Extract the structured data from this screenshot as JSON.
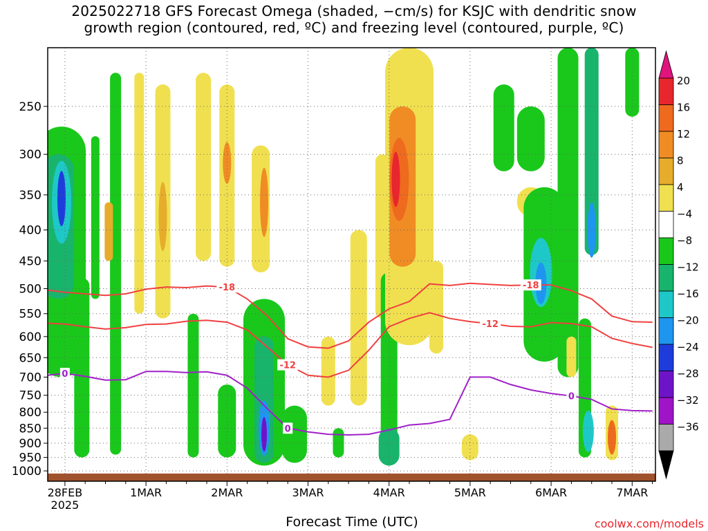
{
  "title": {
    "line1": "2025022718 GFS Forecast Omega (shaded, −cm/s) for KSJC with dendritic snow",
    "line2": "growth region (contoured, red, ºC) and freezing level (contoured, purple, ºC)"
  },
  "credit": "coolwx.com/models",
  "chart_data": {
    "type": "heatmap",
    "title": "2025022718 GFS Forecast Omega (shaded, −cm/s) for KSJC with dendritic snow growth region (contoured, red, ºC) and freezing level (contoured, purple, ºC)",
    "xlabel": "Forecast Time (UTC)",
    "ylabel": "",
    "x_ticks": [
      "28FEB\n2025",
      "1MAR",
      "2MAR",
      "3MAR",
      "4MAR",
      "5MAR",
      "6MAR",
      "7MAR"
    ],
    "x_range": [
      "2025-02-27 18Z",
      "2025-03-07 06Z"
    ],
    "y_ticks": [
      250,
      300,
      350,
      400,
      450,
      500,
      550,
      600,
      650,
      700,
      750,
      800,
      850,
      900,
      950,
      1000
    ],
    "y_range": [
      1000,
      200
    ],
    "y_scale": "log (pressure, hPa)",
    "grid": true,
    "colorbar": {
      "labels": [
        20,
        16,
        12,
        8,
        4,
        -4,
        -8,
        -12,
        -16,
        -20,
        -24,
        -28,
        -32,
        -36
      ],
      "colors": [
        "#e0147d",
        "#e8262d",
        "#ee6a1e",
        "#f08c24",
        "#e6ac2c",
        "#f0e050",
        "#ffffff",
        "#19c81b",
        "#19b46c",
        "#1ec8c8",
        "#1e96f0",
        "#1e3cdc",
        "#6e14c8",
        "#a014c8",
        "#aaaaaa",
        "#000000"
      ]
    },
    "contours": {
      "dendritic_minus12": {
        "color": "#f04040",
        "label": "-12",
        "points": [
          [
            "02-27 18Z",
            570
          ],
          [
            "02-28 00Z",
            572
          ],
          [
            "02-28 06Z",
            578
          ],
          [
            "02-28 12Z",
            583
          ],
          [
            "02-28 18Z",
            580
          ],
          [
            "03-01 00Z",
            573
          ],
          [
            "03-01 06Z",
            572
          ],
          [
            "03-01 12Z",
            566
          ],
          [
            "03-01 18Z",
            564
          ],
          [
            "03-02 00Z",
            568
          ],
          [
            "03-02 06Z",
            585
          ],
          [
            "03-02 12Z",
            625
          ],
          [
            "03-02 18Z",
            668
          ],
          [
            "03-03 00Z",
            695
          ],
          [
            "03-03 06Z",
            700
          ],
          [
            "03-03 12Z",
            682
          ],
          [
            "03-03 18Z",
            632
          ],
          [
            "03-04 00Z",
            578
          ],
          [
            "03-04 06Z",
            560
          ],
          [
            "03-04 12Z",
            548
          ],
          [
            "03-04 18Z",
            560
          ],
          [
            "03-05 00Z",
            567
          ],
          [
            "03-05 06Z",
            571
          ],
          [
            "03-05 12Z",
            577
          ],
          [
            "03-05 18Z",
            578
          ],
          [
            "03-06 00Z",
            569
          ],
          [
            "03-06 06Z",
            571
          ],
          [
            "03-06 12Z",
            578
          ],
          [
            "03-06 18Z",
            604
          ],
          [
            "03-07 00Z",
            616
          ],
          [
            "03-07 06Z",
            625
          ]
        ]
      },
      "dendritic_minus18": {
        "color": "#f04040",
        "label": "-18",
        "points": [
          [
            "02-27 18Z",
            502
          ],
          [
            "02-28 00Z",
            507
          ],
          [
            "02-28 06Z",
            510
          ],
          [
            "02-28 12Z",
            513
          ],
          [
            "02-28 18Z",
            510
          ],
          [
            "03-01 00Z",
            501
          ],
          [
            "03-01 06Z",
            497
          ],
          [
            "03-01 12Z",
            498
          ],
          [
            "03-01 18Z",
            495
          ],
          [
            "03-02 00Z",
            497
          ],
          [
            "03-02 06Z",
            520
          ],
          [
            "03-02 12Z",
            555
          ],
          [
            "03-02 18Z",
            605
          ],
          [
            "03-03 00Z",
            624
          ],
          [
            "03-03 06Z",
            627
          ],
          [
            "03-03 12Z",
            610
          ],
          [
            "03-03 18Z",
            568
          ],
          [
            "03-04 00Z",
            540
          ],
          [
            "03-04 06Z",
            525
          ],
          [
            "03-04 12Z",
            491
          ],
          [
            "03-04 18Z",
            494
          ],
          [
            "03-05 00Z",
            490
          ],
          [
            "03-05 06Z",
            492
          ],
          [
            "03-05 12Z",
            494
          ],
          [
            "03-05 18Z",
            493
          ],
          [
            "03-06 00Z",
            493
          ],
          [
            "03-06 06Z",
            504
          ],
          [
            "03-06 12Z",
            520
          ],
          [
            "03-06 18Z",
            555
          ],
          [
            "03-07 00Z",
            567
          ],
          [
            "03-07 06Z",
            568
          ]
        ]
      },
      "freezing_level_0": {
        "color": "#a020c8",
        "label": "0",
        "points": [
          [
            "02-27 18Z",
            696
          ],
          [
            "02-28 00Z",
            690
          ],
          [
            "02-28 06Z",
            698
          ],
          [
            "02-28 12Z",
            708
          ],
          [
            "02-28 18Z",
            707
          ],
          [
            "03-01 00Z",
            685
          ],
          [
            "03-01 06Z",
            685
          ],
          [
            "03-01 12Z",
            688
          ],
          [
            "03-01 18Z",
            686
          ],
          [
            "03-02 00Z",
            695
          ],
          [
            "03-02 06Z",
            730
          ],
          [
            "03-02 12Z",
            790
          ],
          [
            "03-02 18Z",
            850
          ],
          [
            "03-03 00Z",
            862
          ],
          [
            "03-03 06Z",
            870
          ],
          [
            "03-03 12Z",
            872
          ],
          [
            "03-03 18Z",
            870
          ],
          [
            "03-04 00Z",
            856
          ],
          [
            "03-04 06Z",
            840
          ],
          [
            "03-04 12Z",
            835
          ],
          [
            "03-04 18Z",
            822
          ],
          [
            "03-05 00Z",
            700
          ],
          [
            "03-05 06Z",
            700
          ],
          [
            "03-05 12Z",
            720
          ],
          [
            "03-05 18Z",
            735
          ],
          [
            "03-06 00Z",
            745
          ],
          [
            "03-06 06Z",
            752
          ],
          [
            "03-06 12Z",
            762
          ],
          [
            "03-06 18Z",
            790
          ],
          [
            "03-07 00Z",
            795
          ],
          [
            "03-07 06Z",
            796
          ]
        ]
      }
    },
    "omega_features": [
      {
        "sign": "upward",
        "max_value": -24,
        "center": [
          "02-27 23Z",
          360
        ],
        "note": "strong ascent 28FEB"
      },
      {
        "sign": "upward",
        "max_value": -24,
        "center": [
          "03-02 11Z",
          850
        ],
        "note": "low-level ascent 2MAR"
      },
      {
        "sign": "downward",
        "max_value": 16,
        "center": [
          "03-04 02Z",
          340
        ],
        "note": "subsidence 4MAR"
      },
      {
        "sign": "upward",
        "max_value": -20,
        "center": [
          "03-05 21Z",
          470
        ],
        "note": "ascent 6MAR"
      },
      {
        "sign": "downward",
        "max_value": 12,
        "center": [
          "03-06 18Z",
          880
        ],
        "note": "low-level subsidence 7MAR"
      }
    ],
    "ground_shading": {
      "color": "#a0522d",
      "level": 1010
    }
  }
}
